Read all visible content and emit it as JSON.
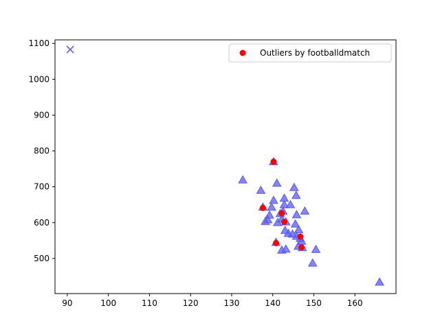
{
  "chart_data": {
    "type": "scatter",
    "title": "",
    "xlabel": "",
    "ylabel": "",
    "xlim": [
      87,
      170
    ],
    "ylim": [
      402,
      1110
    ],
    "xticks": [
      90,
      100,
      110,
      120,
      130,
      140,
      150,
      160
    ],
    "yticks": [
      500,
      600,
      700,
      800,
      900,
      1000,
      1100
    ],
    "grid": false,
    "legend_position": "top-right",
    "series": [
      {
        "marker": "x",
        "color": "#5b5bf0",
        "points": [
          [
            90.7,
            1083
          ]
        ]
      },
      {
        "marker": "triangle",
        "color": "#5b5bf0",
        "points": [
          [
            132.7,
            719
          ],
          [
            137.1,
            690
          ],
          [
            137.6,
            643
          ],
          [
            138.2,
            603
          ],
          [
            138.8,
            608
          ],
          [
            139.2,
            621
          ],
          [
            139.7,
            643
          ],
          [
            140.2,
            662
          ],
          [
            140.2,
            770
          ],
          [
            140.8,
            545
          ],
          [
            141.0,
            710
          ],
          [
            141.2,
            600
          ],
          [
            141.8,
            625
          ],
          [
            142.2,
            610
          ],
          [
            142.2,
            523
          ],
          [
            142.5,
            632
          ],
          [
            142.8,
            650
          ],
          [
            142.8,
            668
          ],
          [
            143.0,
            578
          ],
          [
            143.2,
            602
          ],
          [
            143.2,
            526
          ],
          [
            143.8,
            570
          ],
          [
            144.3,
            650
          ],
          [
            144.8,
            568
          ],
          [
            145.2,
            698
          ],
          [
            145.5,
            596
          ],
          [
            145.7,
            676
          ],
          [
            145.8,
            562
          ],
          [
            145.8,
            622
          ],
          [
            146.2,
            534
          ],
          [
            146.3,
            580
          ],
          [
            146.7,
            556
          ],
          [
            147.0,
            548
          ],
          [
            147.2,
            530
          ],
          [
            147.8,
            632
          ],
          [
            149.7,
            487
          ],
          [
            150.5,
            525
          ],
          [
            166.0,
            434
          ]
        ]
      },
      {
        "name": "Outliers by footballdmatch",
        "marker": "circle",
        "color": "#ff0000",
        "points": [
          [
            137.6,
            641
          ],
          [
            140.2,
            770
          ],
          [
            140.8,
            543
          ],
          [
            142.2,
            626
          ],
          [
            142.8,
            602
          ],
          [
            146.7,
            561
          ],
          [
            147.0,
            531
          ]
        ]
      }
    ],
    "legend": [
      "Outliers by footballdmatch"
    ]
  }
}
